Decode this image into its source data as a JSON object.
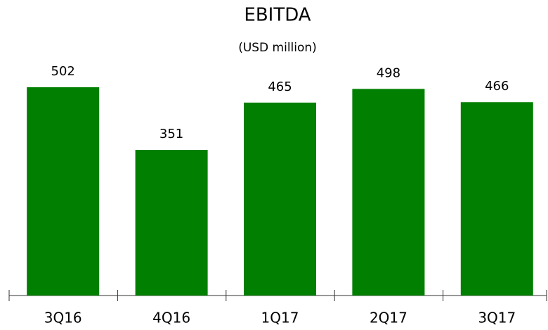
{
  "chart_data": {
    "type": "bar",
    "title": "EBITDA",
    "subtitle": "(USD million)",
    "categories": [
      "3Q16",
      "4Q16",
      "1Q17",
      "2Q17",
      "3Q17"
    ],
    "values": [
      502,
      351,
      465,
      498,
      466
    ],
    "color": "#007f00"
  }
}
